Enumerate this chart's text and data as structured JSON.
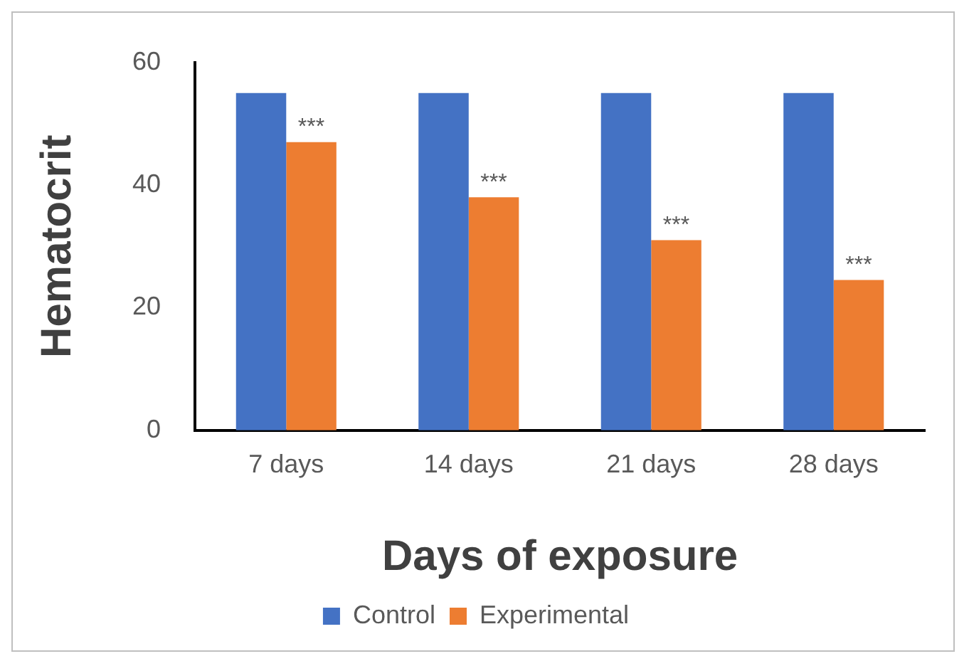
{
  "chart_data": {
    "type": "bar",
    "xlabel": "Days of exposure",
    "ylabel": "Hematocrit",
    "categories": [
      "7 days",
      "14 days",
      "21 days",
      "28 days"
    ],
    "series": [
      {
        "name": "Control",
        "color": "#4472c4",
        "values": [
          55,
          55,
          55,
          55
        ]
      },
      {
        "name": "Experimental",
        "color": "#ed7d31",
        "values": [
          47,
          38,
          31,
          24.5
        ]
      }
    ],
    "ylim": [
      0,
      60
    ],
    "yticks": [
      0,
      20,
      40,
      60
    ],
    "grid": false,
    "legend": "bottom",
    "annotations": [
      {
        "text": "***",
        "x": "7 days",
        "y": 47
      },
      {
        "text": "***",
        "x": "14 days",
        "y": 38
      },
      {
        "text": "***",
        "x": "21 days",
        "y": 31
      },
      {
        "text": "***",
        "x": "28 days",
        "y": 24.5
      }
    ]
  }
}
